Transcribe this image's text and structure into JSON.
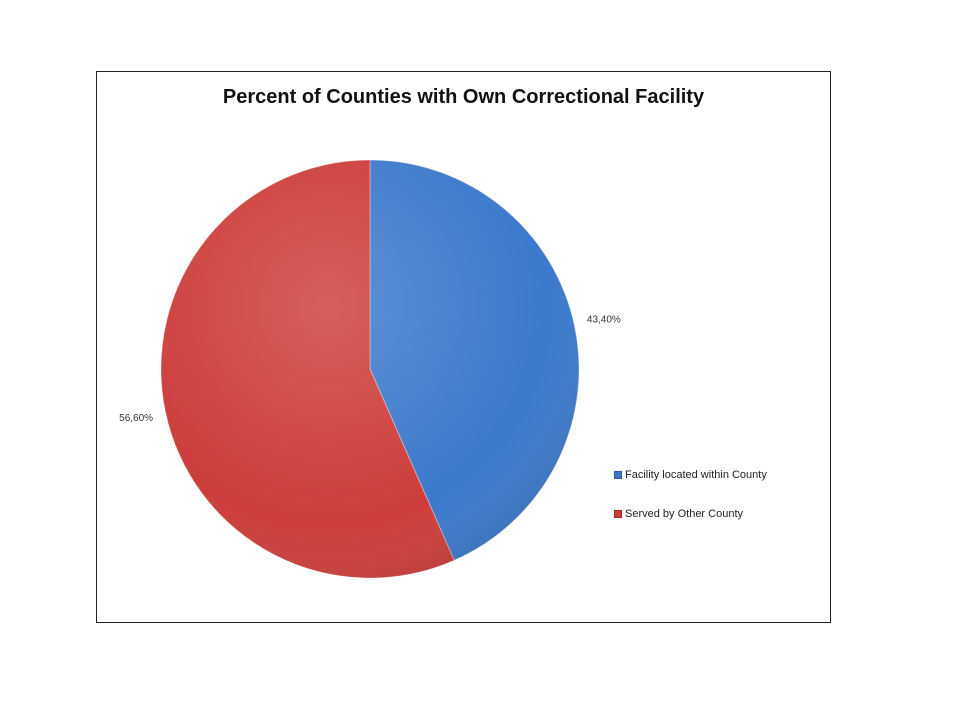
{
  "chart_data": {
    "type": "pie",
    "title": "Percent of Counties with Own Correctional Facility",
    "categories": [
      "Facility located within County",
      "Served by Other County"
    ],
    "values": [
      43.4,
      56.6
    ],
    "data_labels": [
      "43,40%",
      "56,60%"
    ],
    "colors": [
      "#3b79cc",
      "#cc3d3a"
    ],
    "legend_position": "right",
    "start_angle": "12 o'clock, clockwise"
  }
}
